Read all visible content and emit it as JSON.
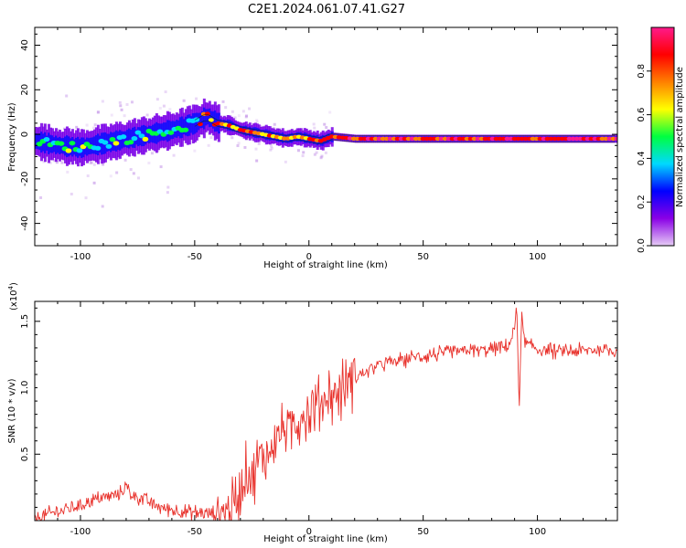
{
  "title": "C2E1.2024.061.07.41.G27",
  "chart_data": [
    {
      "type": "heatmap",
      "xlabel": "Height of straight line (km)",
      "ylabel": "Frequency (Hz)",
      "xlim": [
        -120,
        135
      ],
      "ylim": [
        -50,
        48
      ],
      "xticks": [
        -100,
        -50,
        0,
        50,
        100
      ],
      "yticks": [
        -40,
        -20,
        0,
        20,
        40
      ],
      "ridge": {
        "description": "dominant frequency ridge (Hz) vs height",
        "x": [
          -120,
          -110,
          -100,
          -90,
          -80,
          -70,
          -60,
          -50,
          -45,
          -40,
          -35,
          -30,
          -20,
          -10,
          -5,
          0,
          5,
          10,
          20,
          50,
          80,
          90,
          100,
          135
        ],
        "y": [
          -3,
          -5,
          -6,
          -4,
          -2,
          0,
          2,
          5,
          8,
          5,
          4,
          2,
          0,
          -2,
          -1,
          -2,
          -3,
          -1,
          -2,
          -2,
          -2,
          -2,
          -2,
          -2
        ]
      },
      "colorbar": {
        "label": "Normalized spectral amplitude",
        "range": [
          0,
          1
        ],
        "ticks": [
          "0.0",
          "0.2",
          "0.4",
          "0.6",
          "0.8"
        ],
        "colors": [
          "#e6ccf5",
          "#8a00e6",
          "#0000ff",
          "#00d9ff",
          "#00ff40",
          "#ffff00",
          "#ff8000",
          "#ff0000",
          "#ff1a8c"
        ]
      }
    },
    {
      "type": "line",
      "xlabel": "Height of straight line (km)",
      "ylabel": "SNR (10 * v/v)",
      "scale_label": "(x10",
      "scale_exp": "4",
      "scale_close": ")",
      "xlim": [
        -120,
        135
      ],
      "ylim": [
        0.0,
        1.65
      ],
      "xticks": [
        -100,
        -50,
        0,
        50,
        100
      ],
      "yticks": [
        0.5,
        1.0,
        1.5
      ],
      "ytick_labels": [
        "0.5",
        "1.0",
        "1.5"
      ],
      "color": "#e8302a",
      "series": [
        {
          "name": "SNR",
          "x": [
            -120,
            -115,
            -110,
            -105,
            -100,
            -95,
            -90,
            -85,
            -82,
            -80,
            -78,
            -75,
            -70,
            -65,
            -60,
            -55,
            -50,
            -45,
            -40,
            -35,
            -32,
            -30,
            -28,
            -25,
            -22,
            -20,
            -18,
            -15,
            -12,
            -10,
            -8,
            -5,
            -2,
            0,
            2,
            5,
            8,
            10,
            15,
            20,
            25,
            30,
            40,
            50,
            60,
            70,
            80,
            85,
            88,
            90,
            91,
            92,
            93,
            94,
            95,
            100,
            110,
            120,
            130,
            135
          ],
          "y": [
            0.02,
            0.04,
            0.07,
            0.09,
            0.12,
            0.15,
            0.17,
            0.19,
            0.22,
            0.26,
            0.2,
            0.18,
            0.14,
            0.1,
            0.08,
            0.07,
            0.06,
            0.05,
            0.06,
            0.09,
            0.13,
            0.22,
            0.38,
            0.32,
            0.45,
            0.52,
            0.48,
            0.6,
            0.66,
            0.72,
            0.7,
            0.76,
            0.8,
            0.82,
            0.86,
            0.88,
            0.92,
            0.95,
            1.0,
            1.08,
            1.12,
            1.17,
            1.21,
            1.24,
            1.26,
            1.28,
            1.29,
            1.3,
            1.34,
            1.45,
            1.6,
            0.82,
            1.55,
            1.38,
            1.33,
            1.29,
            1.27,
            1.28,
            1.29,
            1.28
          ]
        }
      ]
    }
  ]
}
